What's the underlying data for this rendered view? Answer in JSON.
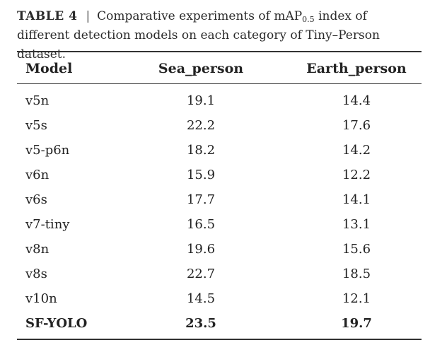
{
  "caption": {
    "label": "TABLE 4",
    "separator": "|",
    "text_before_sub": "Comparative experiments of mAP",
    "subscript": "0.5",
    "text_after_sub": " index of different detection models on each category of Tiny–Person dataset."
  },
  "table": {
    "headers": [
      "Model",
      "Sea_person",
      "Earth_person"
    ],
    "rows": [
      {
        "model": "v5n",
        "sea_person": "19.1",
        "earth_person": "14.4"
      },
      {
        "model": "v5s",
        "sea_person": "22.2",
        "earth_person": "17.6"
      },
      {
        "model": "v5-p6n",
        "sea_person": "18.2",
        "earth_person": "14.2"
      },
      {
        "model": "v6n",
        "sea_person": "15.9",
        "earth_person": "12.2"
      },
      {
        "model": "v6s",
        "sea_person": "17.7",
        "earth_person": "14.1"
      },
      {
        "model": "v7-tiny",
        "sea_person": "16.5",
        "earth_person": "13.1"
      },
      {
        "model": "v8n",
        "sea_person": "19.6",
        "earth_person": "15.6"
      },
      {
        "model": "v8s",
        "sea_person": "22.7",
        "earth_person": "18.5"
      },
      {
        "model": "v10n",
        "sea_person": "14.5",
        "earth_person": "12.1"
      },
      {
        "model": "SF-YOLO",
        "sea_person": "23.5",
        "earth_person": "19.7",
        "highlight": true
      }
    ]
  }
}
